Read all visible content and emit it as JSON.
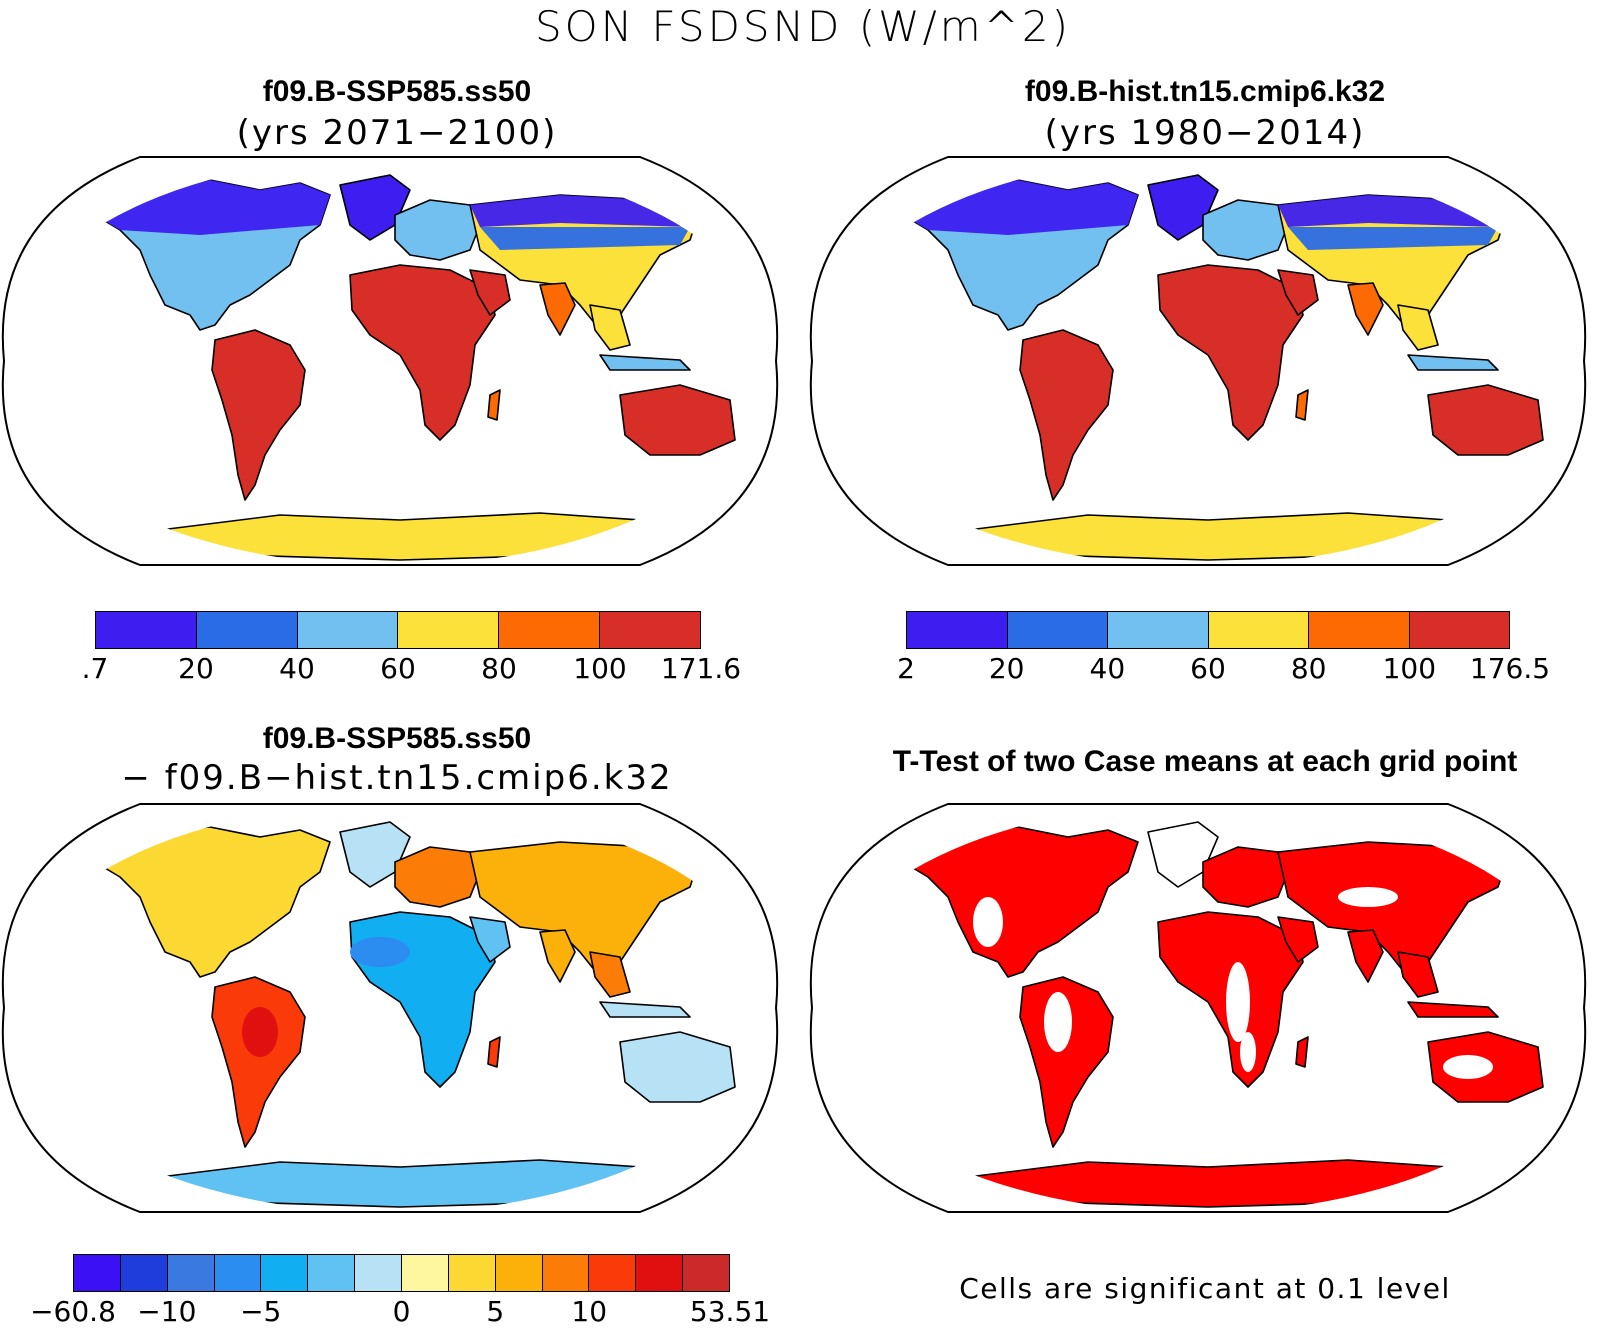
{
  "figure": {
    "title": "SON FSDSND (W/m^2)",
    "note": "Cells are significant at 0.1 level"
  },
  "panels": [
    {
      "id": "ssp585",
      "title": "f09.B-SSP585.ss50",
      "subtitle": "(yrs 2071−2100)",
      "colorbar": {
        "colors": [
          "#3d1df0",
          "#2a6be6",
          "#71c0ef",
          "#fbe13a",
          "#fd6a04",
          "#d82e28"
        ],
        "tick_labels": [
          ".7",
          "20",
          "40",
          "60",
          "80",
          "100",
          "171.6"
        ]
      }
    },
    {
      "id": "hist",
      "title": "f09.B-hist.tn15.cmip6.k32",
      "subtitle": "(yrs 1980−2014)",
      "colorbar": {
        "colors": [
          "#3d1df0",
          "#2a6be6",
          "#71c0ef",
          "#fbe13a",
          "#fd6a04",
          "#d82e28"
        ],
        "tick_labels": [
          "2",
          "20",
          "40",
          "60",
          "80",
          "100",
          "176.5"
        ]
      }
    },
    {
      "id": "diff",
      "title": "f09.B-SSP585.ss50",
      "subtitle": "− f09.B−hist.tn15.cmip6.k32",
      "colorbar": {
        "colors": [
          "#3b10f5",
          "#1f3ddb",
          "#3a7ae0",
          "#2b8df0",
          "#12aef2",
          "#5fc2f2",
          "#b7e2f6",
          "#fff6a0",
          "#fbd932",
          "#fbb10a",
          "#fb7d07",
          "#fb3a0a",
          "#e01010",
          "#cc2a2a"
        ],
        "tick_labels": [
          "−60.8",
          "−10",
          "−5",
          "0",
          "5",
          "10",
          "53.51"
        ]
      }
    },
    {
      "id": "ttest",
      "title": "T-Test of two Case means at each grid point",
      "fill_color": "#ff0000"
    }
  ]
}
